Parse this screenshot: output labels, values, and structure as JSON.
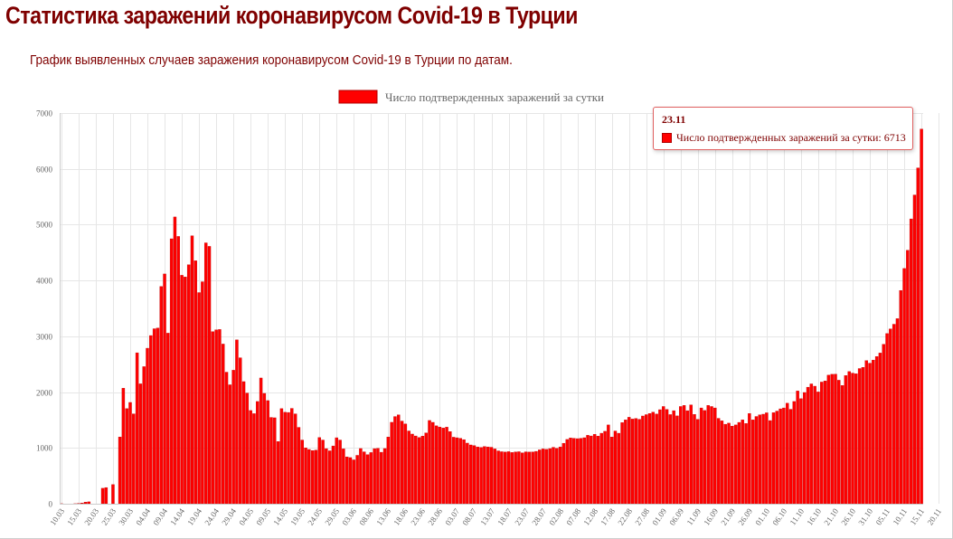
{
  "header": {
    "title": "Статистика заражений коронавирусом Covid-19 в Турции",
    "subtitle": "График выявленных случаев заражения коронавирусом Covid-19 в Турции по датам."
  },
  "tooltip": {
    "title": "23.11",
    "series_label": "Число подтвержденных заражений за сутки",
    "value": "6713",
    "text": "Число подтвержденных заражений за сутки: 6713"
  },
  "colors": {
    "bar": "#ff0000",
    "bar_edge": "#c80000",
    "title": "#7f0000",
    "grid": "#e6e6e6"
  },
  "chart_data": {
    "type": "bar",
    "title": "Статистика заражений коронавирусом Covid-19 в Турции",
    "subtitle": "График выявленных случаев заражения коронавирусом Covid-19 в Турции по датам.",
    "legend": {
      "label": "Число подтвержденных заражений за сутки",
      "position": "top-center"
    },
    "grid": true,
    "x_start": "2020-03-10",
    "x_end": "2020-11-23",
    "x_tick_labels": [
      "10.03",
      "15.03",
      "20.03",
      "25.03",
      "30.03",
      "04.04",
      "09.04",
      "14.04",
      "19.04",
      "24.04",
      "29.04",
      "04.05",
      "09.05",
      "14.05",
      "19.05",
      "24.05",
      "29.05",
      "03.06",
      "08.06",
      "13.06",
      "18.06",
      "23.06",
      "28.06",
      "03.07",
      "08.07",
      "13.07",
      "18.07",
      "23.07",
      "28.07",
      "02.08",
      "07.08",
      "12.08",
      "17.08",
      "22.08",
      "27.08",
      "01.09",
      "06.09",
      "11.09",
      "16.09",
      "21.09",
      "26.09",
      "01.10",
      "06.10",
      "11.10",
      "16.10",
      "21.10",
      "26.10",
      "31.10",
      "05.11",
      "10.11",
      "15.11",
      "20.11"
    ],
    "y_ticks": [
      0,
      1000,
      2000,
      3000,
      4000,
      5000,
      6000,
      7000
    ],
    "ylim": [
      0,
      7000
    ],
    "series": [
      {
        "name": "Число подтвержденных заражений за сутки",
        "values": [
          1,
          0,
          0,
          0,
          1,
          5,
          12,
          29,
          34,
          0,
          0,
          0,
          277,
          289,
          0,
          343,
          0,
          1196,
          2069,
          1704,
          1815,
          1610,
          2704,
          2148,
          2456,
          2786,
          3013,
          3135,
          3148,
          3892,
          4117,
          3056,
          4747,
          5138,
          4789,
          4093,
          4062,
          4281,
          4801,
          4353,
          3783,
          3977,
          4674,
          4611,
          3083,
          3116,
          3122,
          2861,
          2357,
          2131,
          2392,
          2936,
          2615,
          2188,
          1983,
          1670,
          1614,
          1832,
          2253,
          1977,
          1848,
          1546,
          1540,
          1114,
          1704,
          1639,
          1635,
          1708,
          1610,
          1368,
          1141,
          1000,
          972,
          952,
          961,
          1186,
          1141,
          987,
          948,
          1035,
          1182,
          1141,
          983,
          839,
          827,
          786,
          867,
          989,
          930,
          879,
          917,
          987,
          993,
          922,
          989,
          1195,
          1459,
          1562,
          1592,
          1481,
          1429,
          1304,
          1248,
          1214,
          1186,
          1212,
          1268,
          1492,
          1458,
          1396,
          1374,
          1356,
          1372,
          1293,
          1192,
          1182,
          1172,
          1148,
          1086,
          1053,
          1041,
          1016,
          1008,
          1024,
          1016,
          1012,
          982,
          947,
          932,
          926,
          933,
          918,
          928,
          932,
          912,
          930,
          926,
          927,
          938,
          965,
          982,
          974,
          988,
          1011,
          992,
          1016,
          1083,
          1152,
          1178,
          1172,
          1166,
          1172,
          1183,
          1226,
          1214,
          1243,
          1212,
          1263,
          1298,
          1412,
          1195,
          1303,
          1263,
          1453,
          1502,
          1549,
          1517,
          1527,
          1513,
          1572,
          1596,
          1617,
          1641,
          1607,
          1685,
          1742,
          1690,
          1597,
          1667,
          1574,
          1742,
          1761,
          1667,
          1771,
          1601,
          1512,
          1716,
          1671,
          1761,
          1742,
          1716,
          1530,
          1485,
          1424,
          1444,
          1390,
          1412,
          1457,
          1502,
          1437,
          1616,
          1502,
          1563,
          1593,
          1604,
          1629,
          1490,
          1631,
          1660,
          1700,
          1716,
          1801,
          1692,
          1832,
          2020,
          1882,
          1993,
          2088,
          2147,
          2106,
          2003,
          2180,
          2199,
          2304,
          2319,
          2321,
          2213,
          2118,
          2296,
          2368,
          2340,
          2328,
          2422,
          2443,
          2564,
          2518,
          2574,
          2638,
          2700,
          2857,
          3049,
          3132,
          3216,
          3316,
          3821,
          4215,
          4542,
          5103,
          5532,
          6017,
          6713
        ]
      }
    ]
  }
}
